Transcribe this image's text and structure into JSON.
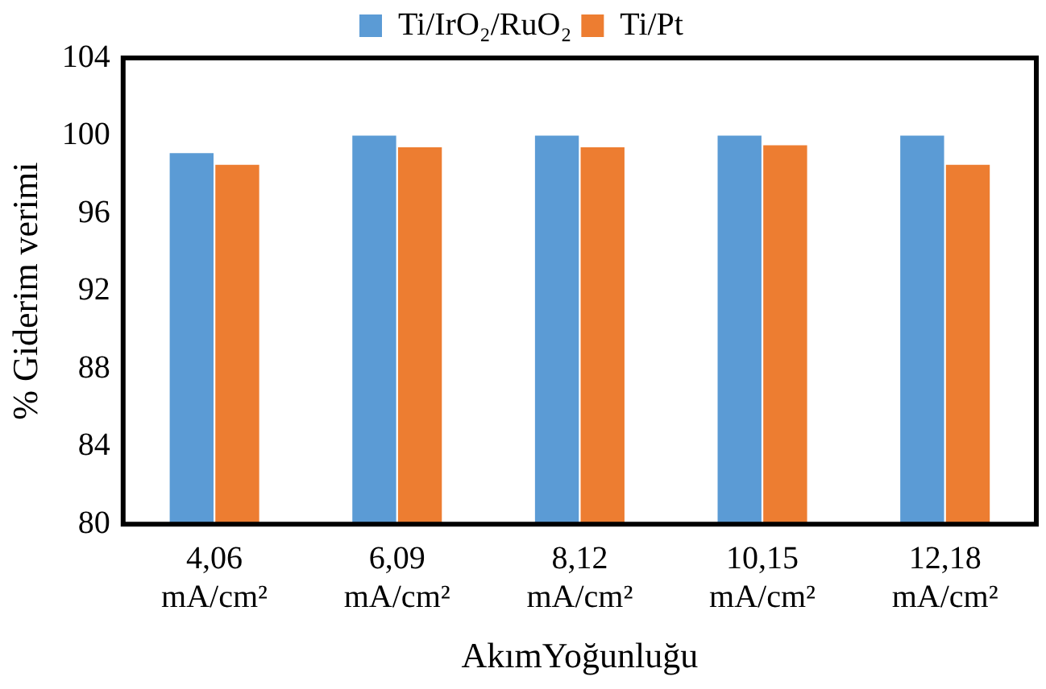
{
  "chart_data": {
    "type": "bar",
    "xlabel": "AkımYoğunluğu",
    "ylabel": "% Giderim verimi",
    "categories": [
      "4,06 mA/cm²",
      "6,09 mA/cm²",
      "8,12 mA/cm²",
      "10,15 mA/cm²",
      "12,18 mA/cm²"
    ],
    "series": [
      {
        "name": "Ti/IrO₂/RuO₂",
        "color": "#5b9bd5",
        "values": [
          99.1,
          100,
          100,
          100,
          100
        ]
      },
      {
        "name": "Ti/Pt",
        "color": "#ed7d31",
        "values": [
          98.5,
          99.4,
          99.4,
          99.5,
          98.5
        ]
      }
    ],
    "ylim": [
      80,
      104
    ],
    "yticks": [
      80,
      84,
      88,
      92,
      96,
      100,
      104
    ],
    "grid": false,
    "legend": "top"
  }
}
